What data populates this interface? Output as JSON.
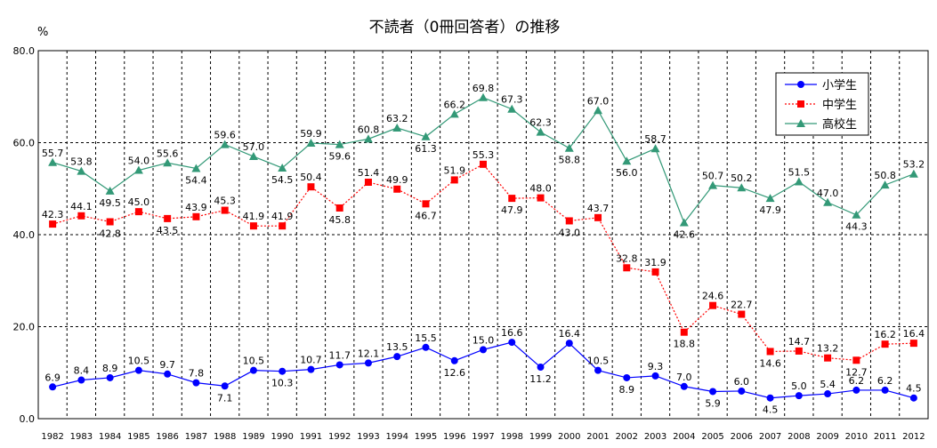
{
  "chart_data": {
    "type": "line",
    "title": "不読者（0冊回答者）の推移",
    "ylabel": "%",
    "ylim": [
      0,
      80
    ],
    "yticks": [
      "0.0",
      "20.0",
      "40.0",
      "60.0",
      "80.0"
    ],
    "ytick_values": [
      0,
      20,
      40,
      60,
      80
    ],
    "grid": "dashed",
    "legend_position": "top-right",
    "x": [
      "1982",
      "1983",
      "1984",
      "1985",
      "1986",
      "1987",
      "1988",
      "1989",
      "1990",
      "1991",
      "1992",
      "1993",
      "1994",
      "1995",
      "1996",
      "1997",
      "1998",
      "1999",
      "2000",
      "2001",
      "2002",
      "2003",
      "2004",
      "2005",
      "2006",
      "2007",
      "2008",
      "2009",
      "2010",
      "2011",
      "2012"
    ],
    "series": [
      {
        "name": "小学生",
        "color": "#0000ff",
        "marker": "circle",
        "line_style": "solid",
        "values": [
          6.9,
          8.4,
          8.9,
          10.5,
          9.7,
          7.8,
          7.1,
          10.5,
          10.3,
          10.7,
          11.7,
          12.1,
          13.5,
          15.5,
          12.6,
          15.0,
          16.6,
          11.2,
          16.4,
          10.5,
          8.9,
          9.3,
          7.0,
          5.9,
          6.0,
          4.5,
          5.0,
          5.4,
          6.2,
          6.2,
          4.5
        ],
        "labels": [
          "6.9",
          "8.4",
          "8.9",
          "10.5",
          "9.7",
          "7.8",
          "7.1",
          "10.5",
          "10.3",
          "10.7",
          "11.7",
          "12.1",
          "13.5",
          "15.5",
          "12.6",
          "15.0",
          "16.6",
          "11.2",
          "16.4",
          "10.5",
          "8.9",
          "9.3",
          "7.0",
          "5.9",
          "6.0",
          "4.5",
          "5.0",
          "5.4",
          "6.2",
          "6.2",
          "4.5"
        ]
      },
      {
        "name": "中学生",
        "color": "#ff0000",
        "marker": "square",
        "line_style": "dashed",
        "values": [
          42.3,
          44.1,
          42.8,
          45.0,
          43.5,
          43.9,
          45.3,
          41.9,
          41.9,
          50.4,
          45.8,
          51.4,
          49.9,
          46.7,
          51.9,
          55.3,
          47.9,
          48.0,
          43.0,
          43.7,
          32.8,
          31.9,
          18.8,
          24.6,
          22.7,
          14.6,
          14.7,
          13.2,
          12.7,
          16.2,
          16.4
        ],
        "labels": [
          "42.3",
          "44.1",
          "42.8",
          "45.0",
          "43.5",
          "43.9",
          "45.3",
          "41.9",
          "41.9",
          "50.4",
          "45.8",
          "51.4",
          "49.9",
          "46.7",
          "51.9",
          "55.3",
          "47.9",
          "48.0",
          "43.0",
          "43.7",
          "32.8",
          "31.9",
          "18.8",
          "24.6",
          "22.7",
          "14.6",
          "14.7",
          "13.2",
          "12.7",
          "16.2",
          "16.4"
        ]
      },
      {
        "name": "高校生",
        "color": "#339977",
        "marker": "triangle",
        "line_style": "solid",
        "values": [
          55.7,
          53.8,
          49.5,
          54.0,
          55.6,
          54.4,
          59.6,
          57.0,
          54.5,
          59.9,
          59.6,
          60.8,
          63.2,
          61.3,
          66.2,
          69.8,
          67.3,
          62.3,
          58.8,
          67.0,
          56.0,
          58.7,
          42.6,
          50.7,
          50.2,
          47.9,
          51.5,
          47.0,
          44.3,
          50.8,
          53.2
        ],
        "labels": [
          "55.7",
          "53.8",
          "49.5",
          "54.0",
          "55.6",
          "54.4",
          "59.6",
          "57.0",
          "54.5",
          "59.9",
          "59.6",
          "60.8",
          "63.2",
          "61.3",
          "66.2",
          "69.8",
          "67.3",
          "62.3",
          "58.8",
          "67.0",
          "56.0",
          "58.7",
          "42.6",
          "50.7",
          "50.2",
          "47.9",
          "51.5",
          "47.0",
          "44.3",
          "50.8",
          "53.2"
        ]
      }
    ]
  }
}
